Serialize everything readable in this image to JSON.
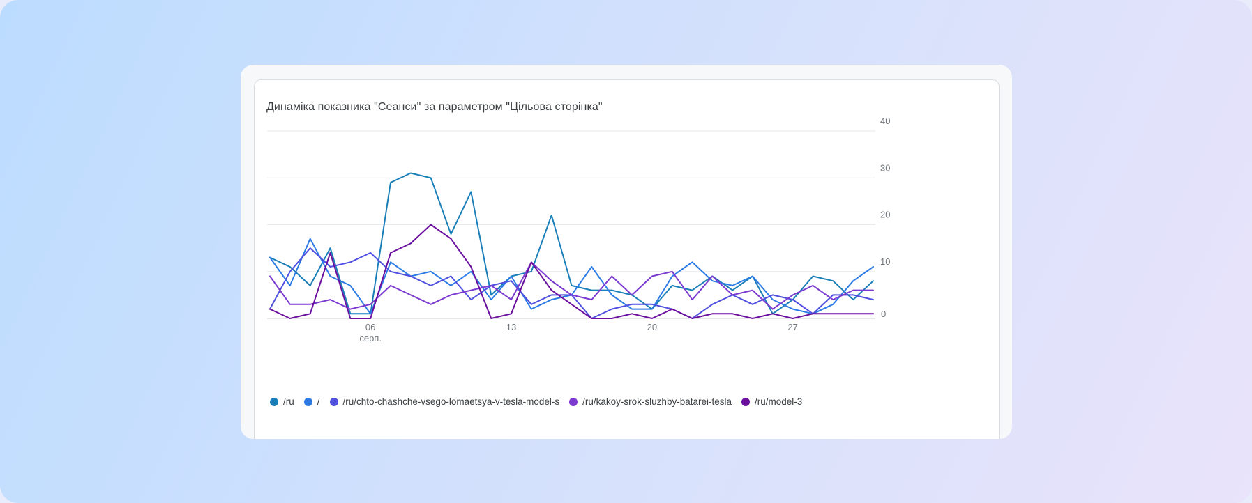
{
  "card": {
    "title": "Динаміка показника \"Сеанси\" за параметром \"Цільова сторінка\""
  },
  "chart_data": {
    "type": "line",
    "title": "Динаміка показника \"Сеанси\" за параметром \"Цільова сторінка\"",
    "xlabel": "",
    "ylabel": "",
    "ylim": [
      0,
      40
    ],
    "y_ticks": [
      0,
      10,
      20,
      30,
      40
    ],
    "x_ticks": [
      {
        "day": 6,
        "label": "06",
        "sublabel": "серп."
      },
      {
        "day": 13,
        "label": "13",
        "sublabel": ""
      },
      {
        "day": 20,
        "label": "20",
        "sublabel": ""
      },
      {
        "day": 27,
        "label": "27",
        "sublabel": ""
      }
    ],
    "x": [
      1,
      2,
      3,
      4,
      5,
      6,
      7,
      8,
      9,
      10,
      11,
      12,
      13,
      14,
      15,
      16,
      17,
      18,
      19,
      20,
      21,
      22,
      23,
      24,
      25,
      26,
      27,
      28,
      29,
      30,
      31
    ],
    "grid": true,
    "legend_position": "bottom-left",
    "series": [
      {
        "name": "/ru",
        "color": "#1a7fb8",
        "values": [
          13,
          11,
          7,
          15,
          1,
          1,
          29,
          31,
          30,
          18,
          27,
          5,
          9,
          10,
          22,
          7,
          6,
          6,
          5,
          2,
          7,
          6,
          9,
          6,
          9,
          1,
          4,
          9,
          8,
          4,
          8
        ]
      },
      {
        "name": "/",
        "color": "#2c7be5",
        "values": [
          13,
          7,
          17,
          9,
          7,
          1,
          12,
          9,
          10,
          7,
          10,
          4,
          9,
          2,
          4,
          5,
          11,
          5,
          2,
          2,
          9,
          12,
          8,
          7,
          9,
          4,
          2,
          1,
          3,
          8,
          11
        ]
      },
      {
        "name": "/ru/chto-chashche-vsego-lomaetsya-v-tesla-model-s",
        "color": "#4f4fe0",
        "values": [
          2,
          10,
          15,
          11,
          12,
          14,
          10,
          9,
          7,
          9,
          4,
          7,
          8,
          3,
          5,
          5,
          0,
          2,
          3,
          3,
          2,
          0,
          3,
          5,
          3,
          5,
          4,
          1,
          5,
          5,
          4
        ]
      },
      {
        "name": "/ru/kakoy-srok-sluzhby-batarei-tesla",
        "color": "#7b3ad0",
        "values": [
          9,
          3,
          3,
          4,
          2,
          3,
          7,
          5,
          3,
          5,
          6,
          7,
          4,
          12,
          8,
          5,
          4,
          9,
          5,
          9,
          10,
          4,
          9,
          5,
          6,
          2,
          5,
          7,
          4,
          6,
          6
        ]
      },
      {
        "name": "/ru/model-3",
        "color": "#6a0f9e",
        "values": [
          2,
          0,
          1,
          14,
          0,
          0,
          14,
          16,
          20,
          17,
          11,
          0,
          1,
          12,
          6,
          3,
          0,
          0,
          1,
          0,
          2,
          0,
          1,
          1,
          0,
          1,
          0,
          1,
          1,
          1,
          1
        ]
      }
    ]
  }
}
